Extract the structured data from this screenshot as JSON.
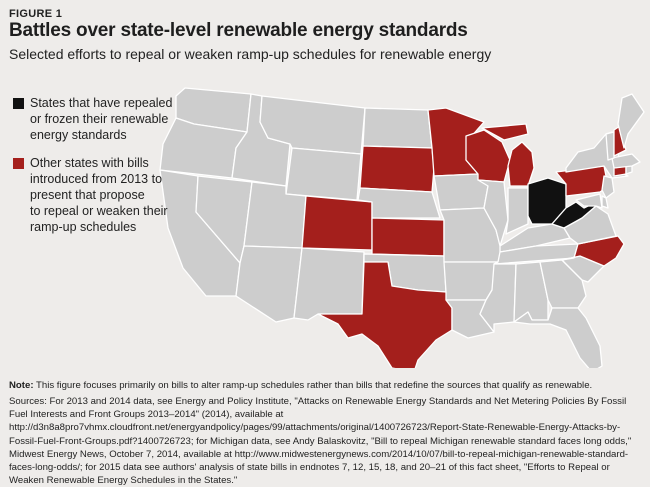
{
  "figure_label": "FIGURE 1",
  "title": "Battles over state-level renewable energy standards",
  "subtitle": "Selected efforts to repeal or weaken ramp-up schedules for renewable energy",
  "legend": {
    "items": [
      {
        "label": "States that have repealed\nor frozen their renewable\nenergy standards",
        "color": "#111111"
      },
      {
        "label": "Other states with bills\nintroduced from 2013 to\npresent that propose\nto repeal or weaken their\nramp-up schedules",
        "color": "#a41f1c"
      }
    ]
  },
  "map": {
    "colors": {
      "default": "#cdcdcd",
      "repealed": "#111111",
      "bills": "#a41f1c",
      "border": "#ffffff",
      "background": "#eeecea"
    },
    "repealed_states": [
      "OH",
      "WV"
    ],
    "bill_states": [
      "SD",
      "MN",
      "WI",
      "MI",
      "CO",
      "KS",
      "TX",
      "NC",
      "PA",
      "NH",
      "CT"
    ]
  },
  "note": {
    "label": "Note:",
    "text": " This figure focuses primarily on bills to alter ramp-up schedules rather than bills that redefine the sources that qualify as renewable."
  },
  "sources": "Sources: For 2013 and 2014 data, see Energy and Policy Institute, \"Attacks on Renewable Energy Standards and Net Metering Policies By Fossil Fuel Interests and Front Groups 2013–2014\" (2014), available at http://d3n8a8pro7vhmx.cloudfront.net/energyandpolicy/pages/99/attachments/original/1400726723/Report-State-Renewable-Energy-Attacks-by-Fossil-Fuel-Front-Groups.pdf?1400726723; for Michigan data, see Andy Balaskovitz, \"Bill to repeal Michigan renewable standard faces long odds,\" Midwest Energy News, October 7, 2014, available at http://www.midwestenergynews.com/2014/10/07/bill-to-repeal-michigan-renewable-standard-faces-long-odds/; for 2015 data see authors' analysis of state bills in endnotes 7, 12, 15, 18, and 20–21 of this fact sheet, \"Efforts to Repeal or Weaken Renewable Energy Schedules in the States.\""
}
